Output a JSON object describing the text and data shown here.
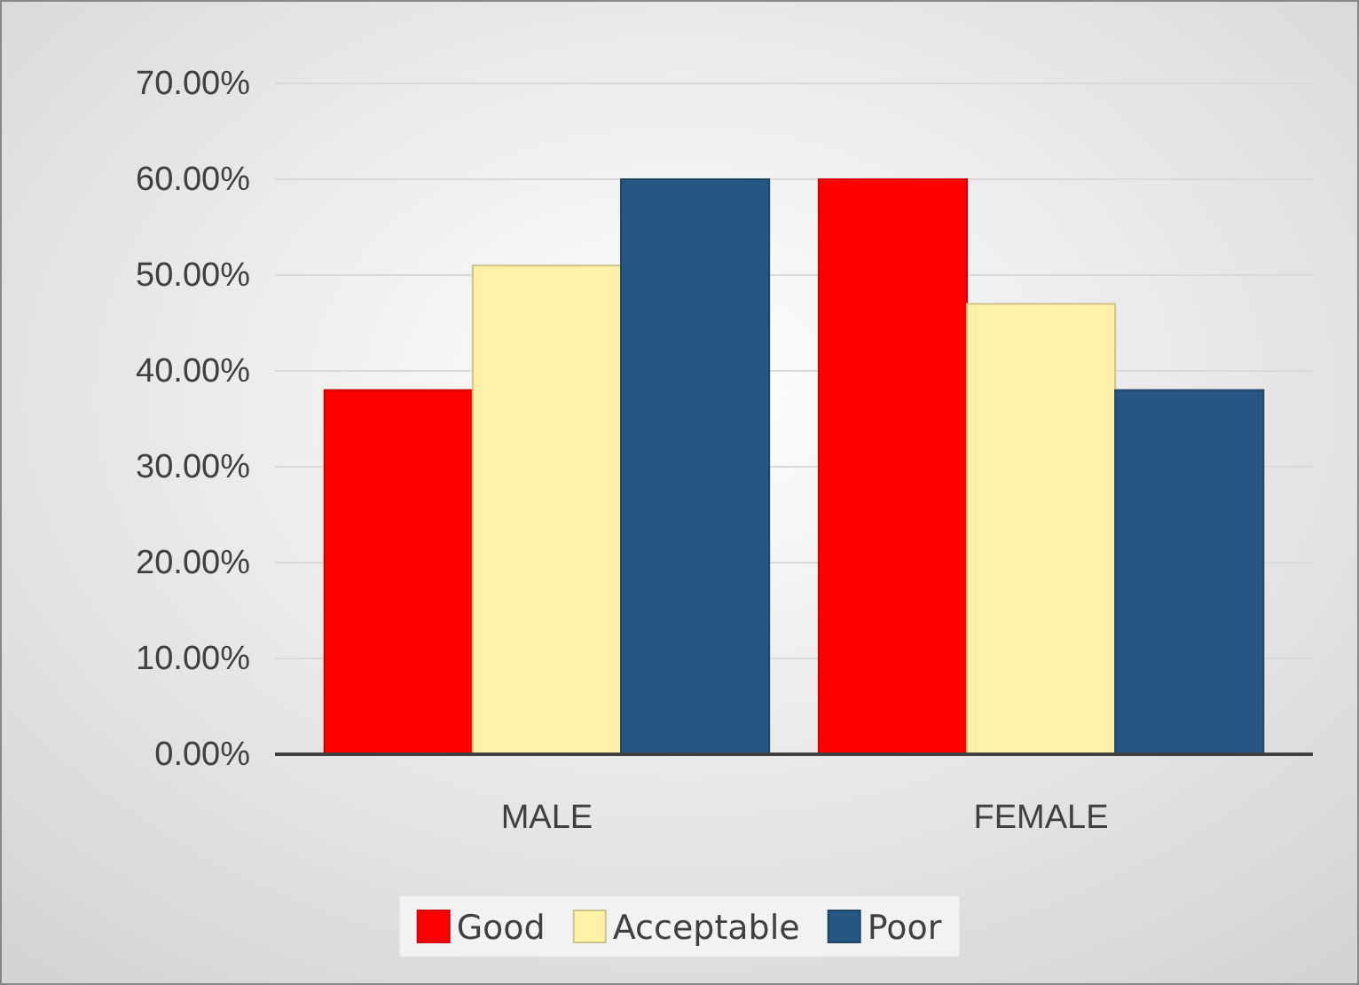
{
  "chart_data": {
    "type": "bar",
    "categories": [
      "MALE",
      "FEMALE"
    ],
    "series": [
      {
        "name": "Good",
        "color": "#ff0000",
        "values": [
          38,
          60
        ]
      },
      {
        "name": "Acceptable",
        "color": "#fff1a8",
        "values": [
          51,
          47
        ]
      },
      {
        "name": "Poor",
        "color": "#265682",
        "values": [
          60,
          38
        ]
      }
    ],
    "ylim": [
      0,
      70
    ],
    "yticks": [
      {
        "value": 0,
        "label": "0.00%"
      },
      {
        "value": 10,
        "label": "10.00%"
      },
      {
        "value": 20,
        "label": "20.00%"
      },
      {
        "value": 30,
        "label": "30.00%"
      },
      {
        "value": 40,
        "label": "40.00%"
      },
      {
        "value": 50,
        "label": "50.00%"
      },
      {
        "value": 60,
        "label": "60.00%"
      },
      {
        "value": 70,
        "label": "70.00%"
      }
    ],
    "grid": "y",
    "legend": "bottom"
  }
}
